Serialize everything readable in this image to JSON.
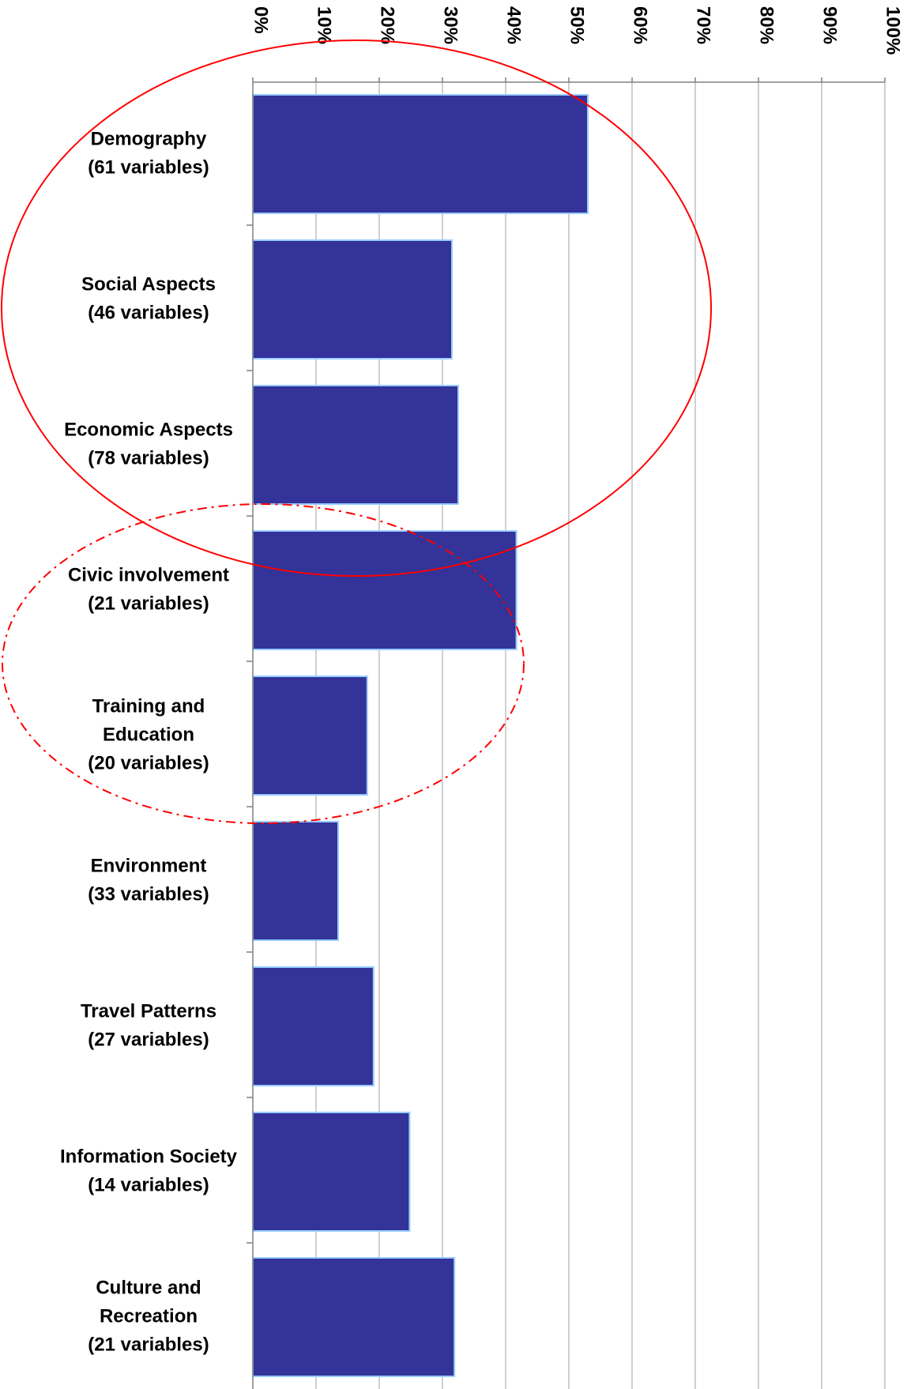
{
  "chart_data": {
    "type": "bar",
    "orientation": "horizontal",
    "title": "",
    "xlabel": "",
    "ylabel": "",
    "xlim": [
      0,
      100
    ],
    "tick_values": [
      0,
      10,
      20,
      30,
      40,
      50,
      60,
      70,
      80,
      90,
      100
    ],
    "tick_labels": [
      "0%",
      "10%",
      "20%",
      "30%",
      "40%",
      "50%",
      "60%",
      "70%",
      "80%",
      "90%",
      "100%"
    ],
    "tick_label_rotation": "vertical",
    "grid": true,
    "legend": "none",
    "categories": [
      [
        "Demography",
        "(61 variables)"
      ],
      [
        "Social Aspects",
        "(46 variables)"
      ],
      [
        "Economic Aspects",
        "(78 variables)"
      ],
      [
        "Civic involvement",
        "(21 variables)"
      ],
      [
        "Training and",
        "Education",
        "(20 variables)"
      ],
      [
        "Environment",
        "(33 variables)"
      ],
      [
        "Travel Patterns",
        "(27 variables)"
      ],
      [
        "Information Society",
        "(14 variables)"
      ],
      [
        "Culture and",
        "Recreation",
        "(21 variables)"
      ]
    ],
    "values": [
      53,
      31.5,
      32.5,
      41.7,
      18.1,
      13.5,
      19.1,
      24.8,
      31.9
    ],
    "annotations": [
      {
        "shape": "ellipse",
        "style": "solid",
        "encloses": [
          "Demography",
          "Social Aspects",
          "Economic Aspects"
        ]
      },
      {
        "shape": "ellipse",
        "style": "dash-dot",
        "encloses": [
          "Civic involvement",
          "Training and Education"
        ]
      }
    ]
  },
  "colors": {
    "bar_fill": "#333399",
    "bar_stroke": "#99ccff",
    "grid": "#a0a0a0",
    "axis": "#808080",
    "annotation": "#ff0000"
  }
}
